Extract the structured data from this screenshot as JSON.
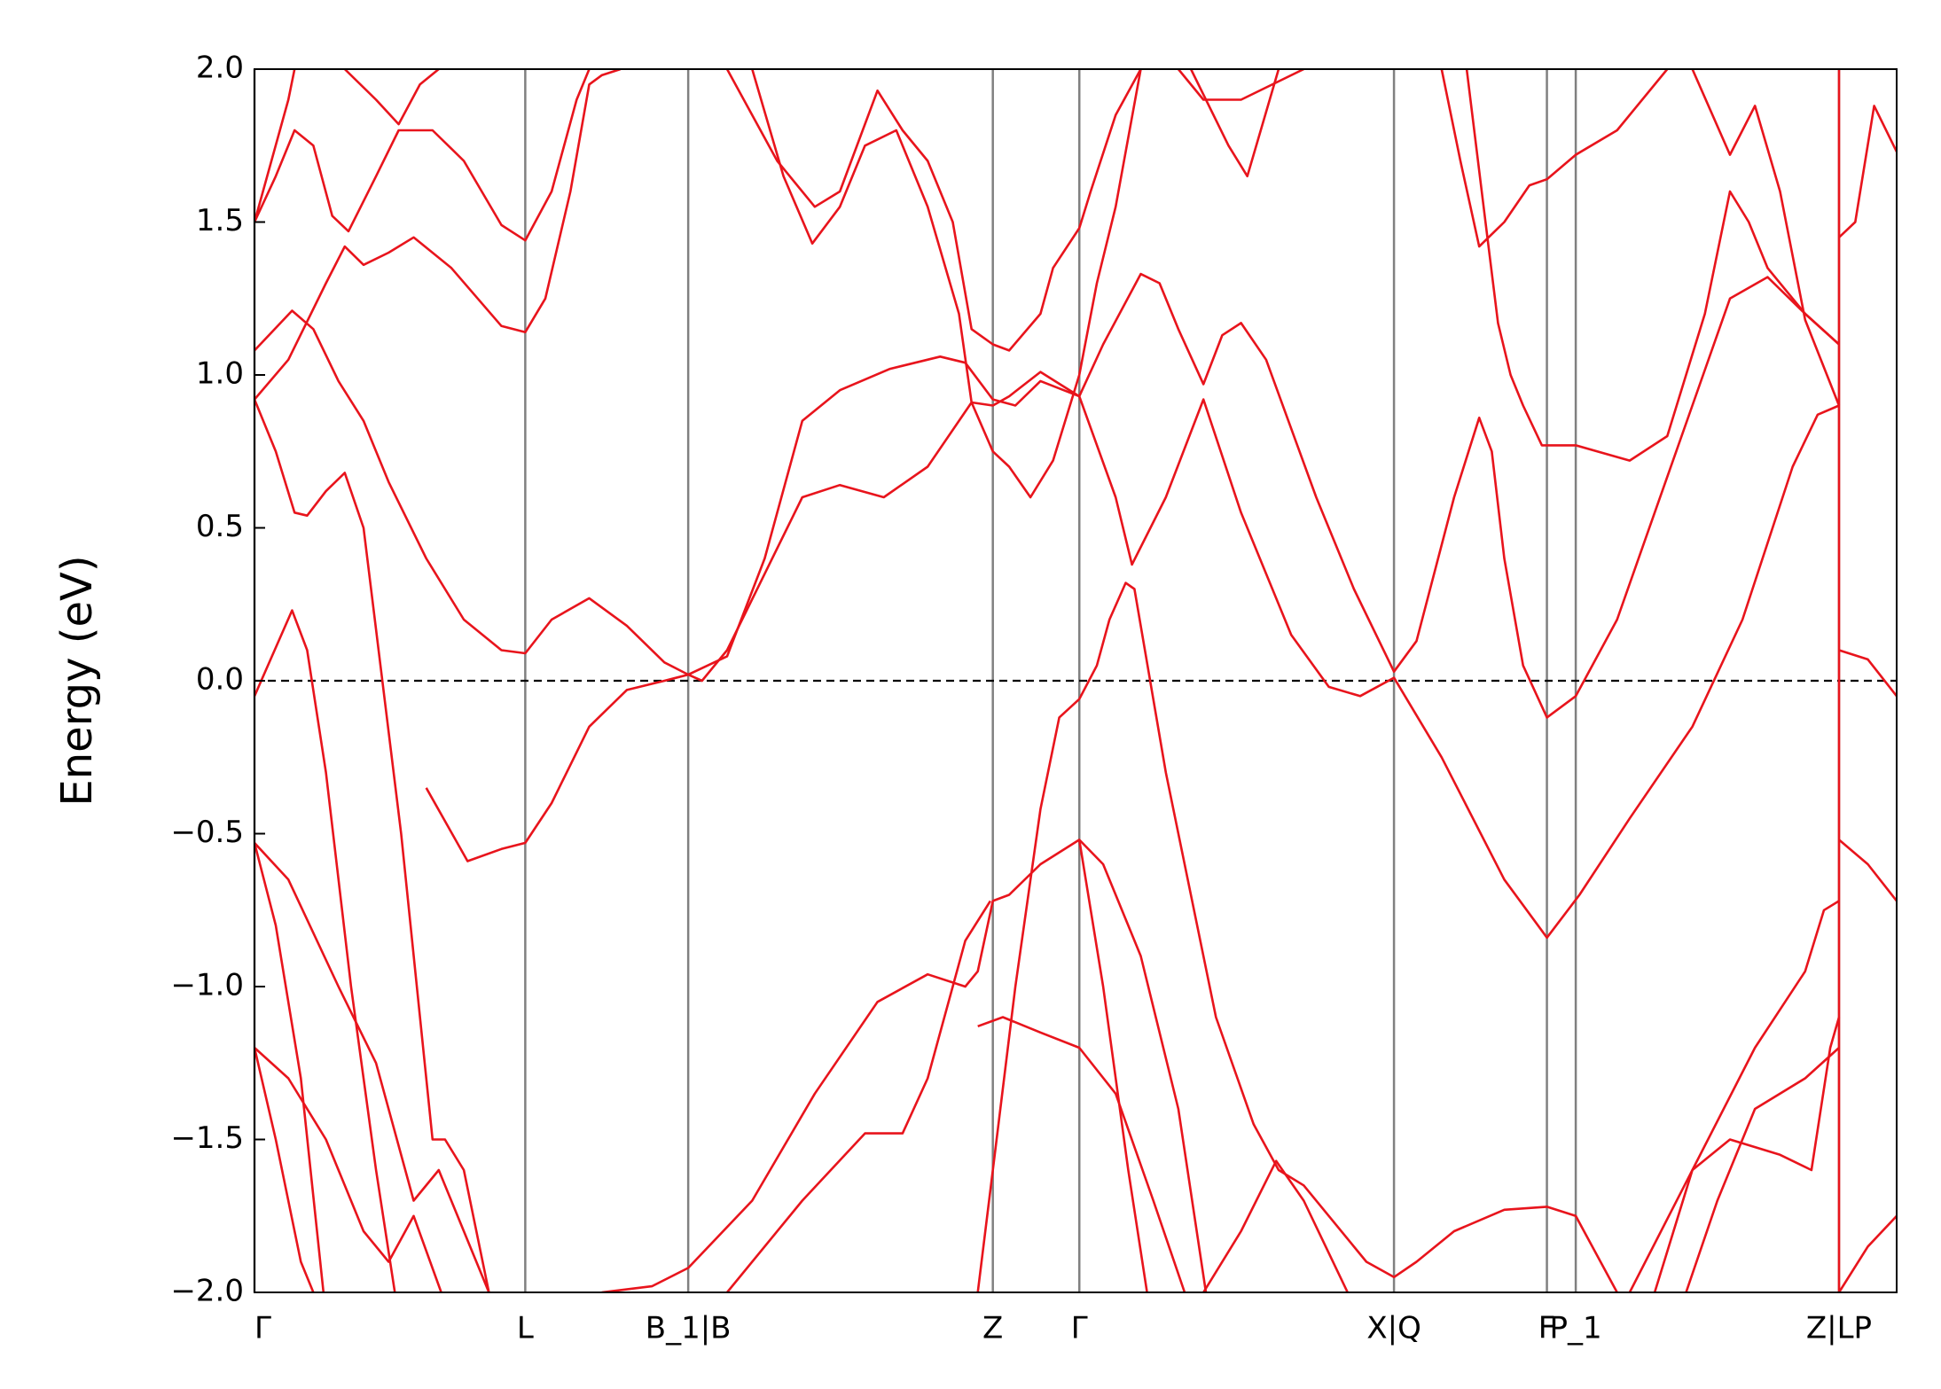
{
  "chart_data": {
    "type": "line",
    "y_label": "Energy (eV)",
    "xlim": [
      0,
      1310
    ],
    "xticks": [
      {
        "value": 0,
        "label": "Γ"
      },
      {
        "value": 216,
        "label": "L"
      },
      {
        "value": 346,
        "label": "B_1|B"
      },
      {
        "value": 589,
        "label": "Z"
      },
      {
        "value": 658,
        "label": "Γ"
      },
      {
        "value": 909,
        "label": "X|Q"
      },
      {
        "value": 1031,
        "label": "F"
      },
      {
        "value": 1054,
        "label": "P_1"
      },
      {
        "value": 1264,
        "label": "Z|LP"
      }
    ],
    "ylim": [
      -2,
      2
    ],
    "yticks": [
      {
        "value": -2,
        "label": "−2.0"
      },
      {
        "value": -1.5,
        "label": "−1.5"
      },
      {
        "value": -1,
        "label": "−1.0"
      },
      {
        "value": -0.5,
        "label": "−0.5"
      },
      {
        "value": 0,
        "label": "0.0"
      },
      {
        "value": 0.5,
        "label": "0.5"
      },
      {
        "value": 1,
        "label": "1.0"
      },
      {
        "value": 1.5,
        "label": "1.5"
      },
      {
        "value": 2,
        "label": "2.0"
      }
    ],
    "kpoint_lines": true,
    "fermi_level": 0,
    "series": [
      {
        "color": "#e8141c",
        "x": [
          0,
          30,
          42,
          57,
          77,
          97,
          112
        ],
        "values": [
          -0.05,
          0.23,
          0.1,
          -0.3,
          -1.0,
          -1.6,
          -2.0
        ]
      },
      {
        "color": "#e8141c",
        "x": [
          0,
          17,
          32,
          42,
          57,
          72,
          87,
          102,
          117,
          142,
          152,
          167,
          187
        ],
        "values": [
          0.92,
          0.75,
          0.55,
          0.54,
          0.62,
          0.68,
          0.5,
          0.0,
          -0.5,
          -1.5,
          -1.5,
          -1.6,
          -2.0
        ]
      },
      {
        "color": "#e8141c",
        "x": [
          0,
          27,
          57,
          72,
          87,
          107,
          127,
          157,
          197,
          216,
          232,
          252,
          267,
          277,
          292
        ],
        "values": [
          0.92,
          1.05,
          1.3,
          1.42,
          1.36,
          1.4,
          1.45,
          1.35,
          1.16,
          1.14,
          1.25,
          1.6,
          1.95,
          1.98,
          2.0
        ]
      },
      {
        "color": "#e8141c",
        "x": [
          0,
          30,
          47,
          67,
          87,
          107,
          137,
          167,
          197,
          216,
          237,
          267,
          297,
          327,
          346,
          357,
          377,
          407,
          437,
          467,
          502,
          537,
          572,
          589,
          602,
          627,
          658,
          677,
          707,
          722,
          737,
          757,
          772,
          787,
          807,
          847,
          877,
          909,
          927,
          957,
          977,
          987,
          997,
          1012,
          1031,
          1054,
          1087,
          1117,
          1147,
          1177,
          1207,
          1237,
          1264
        ],
        "values": [
          1.08,
          1.21,
          1.15,
          0.98,
          0.85,
          0.65,
          0.4,
          0.2,
          0.1,
          0.09,
          0.2,
          0.27,
          0.18,
          0.06,
          0.02,
          0.0,
          0.1,
          0.35,
          0.6,
          0.64,
          0.6,
          0.7,
          0.91,
          0.9,
          0.93,
          1.01,
          0.93,
          1.1,
          1.33,
          1.3,
          1.15,
          0.97,
          1.13,
          1.17,
          1.05,
          0.6,
          0.3,
          0.03,
          0.13,
          0.6,
          0.86,
          0.75,
          0.4,
          0.05,
          -0.12,
          -0.05,
          0.2,
          0.55,
          0.9,
          1.25,
          1.32,
          1.2,
          1.1
        ]
      },
      {
        "color": "#e8141c",
        "x": [
          137,
          170,
          197,
          216,
          237,
          267,
          297,
          327,
          346,
          377,
          407,
          437,
          467,
          507,
          547,
          567,
          589,
          607,
          627,
          658,
          687,
          700,
          727,
          757,
          787,
          827,
          857,
          882,
          909,
          947,
          997,
          1031,
          1057,
          1097,
          1147,
          1187,
          1227,
          1247,
          1264
        ],
        "values": [
          -0.35,
          -0.59,
          -0.55,
          -0.53,
          -0.4,
          -0.15,
          -0.03,
          0.0,
          0.02,
          0.08,
          0.4,
          0.85,
          0.95,
          1.02,
          1.06,
          1.04,
          0.92,
          0.9,
          0.98,
          0.93,
          0.6,
          0.38,
          0.6,
          0.92,
          0.55,
          0.15,
          -0.02,
          -0.05,
          0.01,
          -0.25,
          -0.65,
          -0.84,
          -0.7,
          -0.45,
          -0.15,
          0.2,
          0.7,
          0.87,
          0.9
        ]
      },
      {
        "color": "#e8141c",
        "x": [
          0,
          17,
          32,
          47,
          62,
          75,
          97,
          115,
          142,
          167,
          197,
          216,
          237,
          257,
          267
        ],
        "values": [
          1.5,
          1.65,
          1.8,
          1.75,
          1.52,
          1.47,
          1.65,
          1.8,
          1.8,
          1.7,
          1.49,
          1.44,
          1.6,
          1.9,
          2.0
        ]
      },
      {
        "color": "#e8141c",
        "x": [
          0,
          27,
          32
        ],
        "values": [
          1.5,
          1.9,
          2.0
        ]
      },
      {
        "color": "#e8141c",
        "x": [
          72,
          97,
          115,
          132,
          147
        ],
        "values": [
          2.0,
          1.9,
          1.82,
          1.95,
          2.0
        ]
      },
      {
        "color": "#e8141c",
        "x": [
          377,
          417,
          447,
          467,
          497,
          517,
          537,
          557,
          572,
          589,
          602,
          627,
          637,
          658,
          667,
          687,
          707
        ],
        "values": [
          2.0,
          1.7,
          1.55,
          1.6,
          1.93,
          1.8,
          1.7,
          1.5,
          1.15,
          1.1,
          1.08,
          1.2,
          1.35,
          1.48,
          1.6,
          1.85,
          2.0
        ]
      },
      {
        "color": "#e8141c",
        "x": [
          397,
          422,
          445,
          467,
          487,
          512,
          537,
          562,
          572,
          589,
          602,
          619,
          637,
          658,
          672,
          687,
          707
        ],
        "values": [
          2.0,
          1.65,
          1.43,
          1.55,
          1.75,
          1.8,
          1.55,
          1.2,
          0.91,
          0.75,
          0.7,
          0.6,
          0.72,
          1.0,
          1.3,
          1.55,
          2.0
        ]
      },
      {
        "color": "#e8141c",
        "x": [
          0,
          27,
          67,
          97,
          127,
          147,
          167,
          187
        ],
        "values": [
          -0.53,
          -0.65,
          -1.0,
          -1.25,
          -1.7,
          -1.6,
          -1.8,
          -2.0
        ]
      },
      {
        "color": "#e8141c",
        "x": [
          0,
          17,
          37,
          55
        ],
        "values": [
          -0.53,
          -0.8,
          -1.3,
          -2.0
        ]
      },
      {
        "color": "#e8141c",
        "x": [
          0,
          27,
          57,
          87,
          107,
          127,
          149
        ],
        "values": [
          -1.2,
          -1.3,
          -1.5,
          -1.8,
          -1.9,
          -1.75,
          -2.0
        ]
      },
      {
        "color": "#e8141c",
        "x": [
          0,
          17,
          37,
          47
        ],
        "values": [
          -1.2,
          -1.5,
          -1.9,
          -2.0
        ]
      },
      {
        "color": "#e8141c",
        "x": [
          277,
          317,
          346,
          397,
          447,
          497,
          537,
          567,
          577,
          589,
          602,
          627,
          658,
          677,
          707,
          737,
          759
        ],
        "values": [
          -2.0,
          -1.98,
          -1.92,
          -1.7,
          -1.35,
          -1.05,
          -0.96,
          -1.0,
          -0.95,
          -0.72,
          -0.7,
          -0.6,
          -0.52,
          -0.6,
          -0.9,
          -1.4,
          -2.0
        ]
      },
      {
        "color": "#e8141c",
        "x": [
          377,
          437,
          487,
          517,
          537,
          567,
          587
        ],
        "values": [
          -2.0,
          -1.7,
          -1.48,
          -1.48,
          -1.3,
          -0.85,
          -0.72
        ]
      },
      {
        "color": "#e8141c",
        "x": [
          577,
          589,
          607,
          627,
          642,
          658,
          672,
          682,
          695,
          702,
          727,
          767,
          797,
          817,
          837,
          857,
          887,
          909,
          927,
          957,
          997,
          1031,
          1054,
          1087
        ],
        "values": [
          -2.0,
          -1.6,
          -1.0,
          -0.42,
          -0.12,
          -0.06,
          0.05,
          0.2,
          0.32,
          0.3,
          -0.3,
          -1.1,
          -1.45,
          -1.6,
          -1.65,
          -1.75,
          -1.9,
          -1.95,
          -1.9,
          -1.8,
          -1.73,
          -1.72,
          -1.75,
          -2.0
        ]
      },
      {
        "color": "#e8141c",
        "x": [
          658,
          677,
          697,
          712
        ],
        "values": [
          -0.52,
          -1.0,
          -1.6,
          -2.0
        ]
      },
      {
        "color": "#e8141c",
        "x": [
          577,
          597,
          627,
          658,
          687,
          717,
          742
        ],
        "values": [
          -1.13,
          -1.1,
          -1.15,
          -1.2,
          -1.35,
          -1.7,
          -2.0
        ]
      },
      {
        "color": "#e8141c",
        "x": [
          757,
          787,
          815,
          837,
          872
        ],
        "values": [
          -2.0,
          -1.8,
          -1.57,
          -1.7,
          -2.0
        ]
      },
      {
        "color": "#e8141c",
        "x": [
          1097,
          1147,
          1197,
          1237,
          1252,
          1264
        ],
        "values": [
          -2.0,
          -1.6,
          -1.2,
          -0.95,
          -0.75,
          -0.72
        ]
      },
      {
        "color": "#e8141c",
        "x": [
          1117,
          1147,
          1177,
          1217,
          1242,
          1257,
          1264
        ],
        "values": [
          -2.0,
          -1.6,
          -1.5,
          -1.55,
          -1.6,
          -1.2,
          -1.1
        ]
      },
      {
        "color": "#e8141c",
        "x": [
          1142,
          1167,
          1197,
          1237,
          1264
        ],
        "values": [
          -2.0,
          -1.7,
          -1.4,
          -1.3,
          -1.2
        ]
      },
      {
        "color": "#e8141c",
        "x": [
          1264,
          1287,
          1310
        ],
        "values": [
          0.1,
          0.07,
          -0.05
        ]
      },
      {
        "color": "#e8141c",
        "x": [
          1264,
          1287,
          1310
        ],
        "values": [
          -0.52,
          -0.6,
          -0.72
        ]
      },
      {
        "color": "#e8141c",
        "x": [
          1264,
          1277,
          1292,
          1310
        ],
        "values": [
          1.45,
          1.5,
          1.88,
          1.73
        ]
      },
      {
        "color": "#e8141c",
        "x": [
          1264,
          1287,
          1310
        ],
        "values": [
          -2.0,
          -1.85,
          -1.75
        ]
      },
      {
        "color": "#e8141c",
        "x": [
          1264,
          1264
        ],
        "values": [
          -2.0,
          2.0
        ]
      },
      {
        "color": "#e8141c",
        "x": [
          947,
          962,
          977,
          997,
          1017,
          1031,
          1054,
          1087,
          1127
        ],
        "values": [
          2.0,
          1.7,
          1.42,
          1.5,
          1.62,
          1.64,
          1.72,
          1.8,
          2.0
        ]
      },
      {
        "color": "#e8141c",
        "x": [
          967,
          982,
          992,
          1002,
          1012,
          1027,
          1054,
          1097,
          1127,
          1157,
          1177,
          1192,
          1207,
          1237,
          1264
        ],
        "values": [
          2.0,
          1.5,
          1.17,
          1.0,
          0.9,
          0.77,
          0.77,
          0.72,
          0.8,
          1.2,
          1.6,
          1.5,
          1.35,
          1.2,
          1.1
        ]
      },
      {
        "color": "#e8141c",
        "x": [
          1147,
          1177,
          1197,
          1217,
          1237,
          1264
        ],
        "values": [
          2.0,
          1.72,
          1.88,
          1.6,
          1.18,
          0.9
        ]
      },
      {
        "color": "#e8141c",
        "x": [
          747,
          777,
          792,
          817
        ],
        "values": [
          2.0,
          1.75,
          1.65,
          2.0
        ]
      },
      {
        "color": "#e8141c",
        "x": [
          737,
          757,
          787,
          837
        ],
        "values": [
          2.0,
          1.9,
          1.9,
          2.0
        ]
      }
    ]
  }
}
